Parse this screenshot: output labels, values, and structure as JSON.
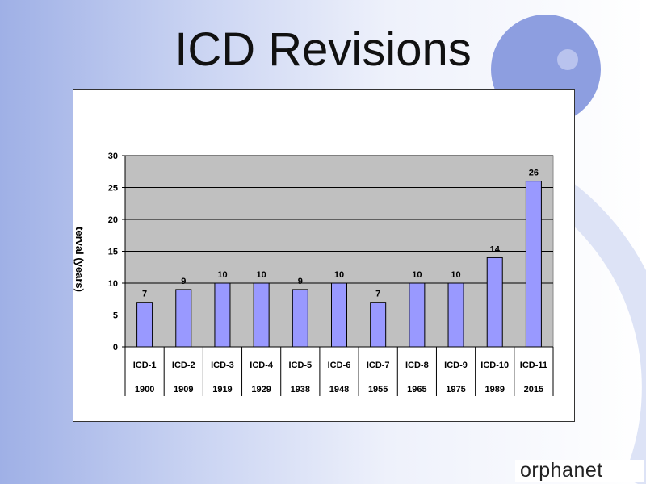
{
  "slide": {
    "title": "ICD Revisions",
    "logo_text": "orphanet"
  },
  "colors": {
    "bar": "#9999ff",
    "plot_bg": "#c0c0c0",
    "background_accent": "#9fb0e6"
  },
  "chart_data": {
    "type": "bar",
    "categories": [
      "ICD-1",
      "ICD-2",
      "ICD-3",
      "ICD-4",
      "ICD-5",
      "ICD-6",
      "ICD-7",
      "ICD-8",
      "ICD-9",
      "ICD-10",
      "ICD-11"
    ],
    "years": [
      "1900",
      "1909",
      "1919",
      "1929",
      "1938",
      "1948",
      "1955",
      "1965",
      "1975",
      "1989",
      "2015"
    ],
    "values": [
      7,
      9,
      10,
      10,
      9,
      10,
      7,
      10,
      10,
      14,
      26
    ],
    "ylabel": "terval (years)",
    "ylim": [
      0,
      30
    ],
    "yticks": [
      0,
      5,
      10,
      15,
      20,
      25,
      30
    ],
    "grid": true,
    "legend": "none"
  }
}
